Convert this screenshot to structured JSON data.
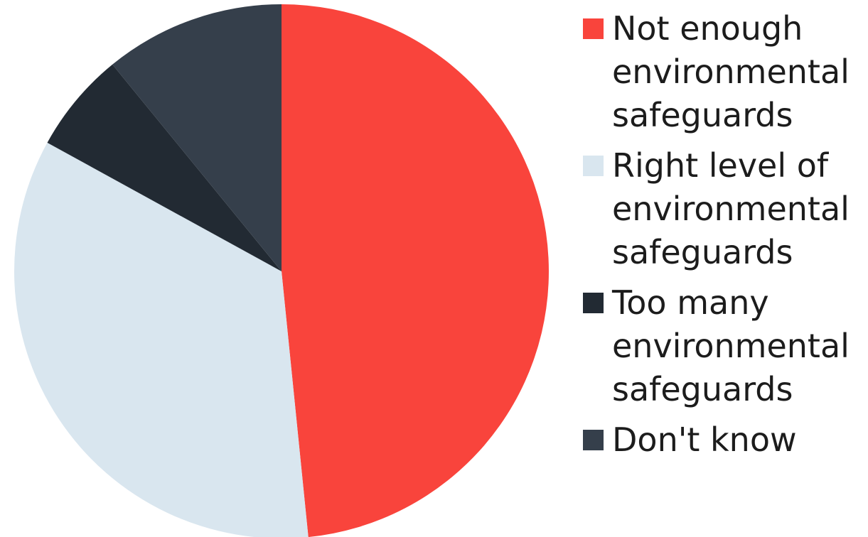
{
  "chart_data": {
    "type": "pie",
    "title": "",
    "slices": [
      {
        "label": "Not enough environmental safeguards",
        "value": 48.4,
        "color": "#f9443c"
      },
      {
        "label": "Right level of environmental safeguards",
        "value": 34.6,
        "color": "#d9e6ef"
      },
      {
        "label": "Too many environmental safeguards",
        "value": 6.1,
        "color": "#222a33"
      },
      {
        "label": "Don't know",
        "value": 10.9,
        "color": "#353f4b"
      }
    ],
    "start_angle": "12 o'clock",
    "direction": "clockwise",
    "legend_position": "right"
  },
  "legend": {
    "items": [
      {
        "lines": [
          "Not enough",
          "environmental",
          "safeguards"
        ]
      },
      {
        "lines": [
          "Right level of",
          "environmental",
          "safeguards"
        ]
      },
      {
        "lines": [
          "Too many",
          "environmental",
          "safeguards"
        ]
      },
      {
        "lines": [
          "Don't know"
        ]
      }
    ]
  }
}
